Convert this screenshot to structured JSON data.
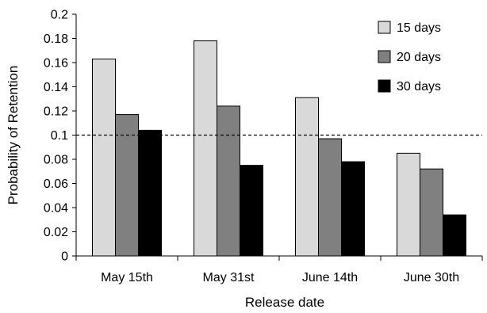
{
  "chart_data": {
    "type": "bar",
    "title": "",
    "xlabel": "Release date",
    "ylabel": "Probability of Retention",
    "categories": [
      "May 15th",
      "May 31st",
      "June 14th",
      "June 30th"
    ],
    "series": [
      {
        "name": "15 days",
        "values": [
          0.163,
          0.178,
          0.131,
          0.085
        ],
        "color": "#d9d9d9"
      },
      {
        "name": "20 days",
        "values": [
          0.117,
          0.124,
          0.097,
          0.072
        ],
        "color": "#808080"
      },
      {
        "name": "30 days",
        "values": [
          0.104,
          0.075,
          0.078,
          0.034
        ],
        "color": "#000000"
      }
    ],
    "ylim": [
      0,
      0.2
    ],
    "yticks": [
      "0",
      "0.02",
      "0.04",
      "0.06",
      "0.08",
      "0.1",
      "0.12",
      "0.14",
      "0.16",
      "0.18",
      "0.2"
    ],
    "reference_line": {
      "value": 0.1,
      "style": "dashed"
    },
    "grid": false,
    "legend_position": "top-right"
  }
}
